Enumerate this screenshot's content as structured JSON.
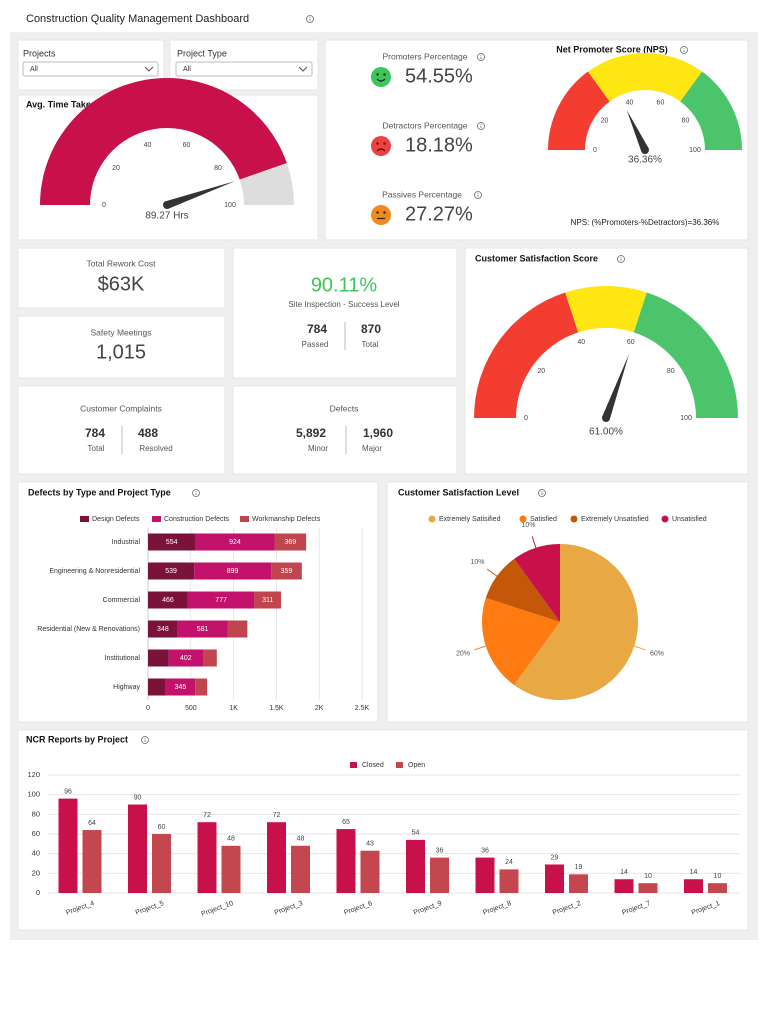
{
  "header": {
    "title": "Construction Quality Management Dashboard"
  },
  "filters": [
    {
      "label": "Projects",
      "value": "All"
    },
    {
      "label": "Project Type",
      "value": "All"
    }
  ],
  "kpis": {
    "rework_cost": {
      "label": "Total Rework Cost",
      "value": "$63K"
    },
    "safety_meetings": {
      "label": "Safety Meetings",
      "value": "1,015"
    },
    "site_inspection": {
      "value": "90.11%",
      "label": "Site Inspection - Success Level",
      "passed": {
        "value": "784",
        "label": "Passed"
      },
      "total": {
        "value": "870",
        "label": "Total"
      }
    },
    "complaints": {
      "label": "Customer Complaints",
      "total": {
        "value": "784",
        "label": "Total"
      },
      "resolved": {
        "value": "488",
        "label": "Resolved"
      }
    },
    "defects": {
      "label": "Defects",
      "minor": {
        "value": "5,892",
        "label": "Minor"
      },
      "major": {
        "value": "1,960",
        "label": "Major"
      }
    },
    "nps_breakdown": [
      {
        "label": "Promoters Percentage",
        "value": "54.55%"
      },
      {
        "label": "Detractors Percentage",
        "value": "18.18%"
      },
      {
        "label": "Passives Percentage",
        "value": "27.27%"
      }
    ]
  },
  "chart_data": [
    {
      "type": "gauge",
      "title": "Avg. Time Taken to Fix Defects",
      "value": 89.27,
      "value_label": "89.27 Hrs",
      "ylim": [
        0,
        100
      ],
      "yticks": [
        0,
        20,
        40,
        60,
        80,
        100
      ],
      "color": "#c8104a",
      "track_color": "#dddddd"
    },
    {
      "type": "gauge",
      "title": "Net Promoter Score (NPS)",
      "value": 36.36,
      "value_label": "36.36%",
      "ylim": [
        0,
        100
      ],
      "yticks": [
        0,
        20,
        40,
        60,
        80,
        100
      ],
      "bands": [
        {
          "from": 0,
          "to": 30,
          "color": "#f23d30"
        },
        {
          "from": 30,
          "to": 70,
          "color": "#fde612"
        },
        {
          "from": 70,
          "to": 100,
          "color": "#4cc46c"
        }
      ],
      "annotation": "NPS: (%Promoters-%Detractors)=36.36%"
    },
    {
      "type": "gauge",
      "title": "Customer Satisfaction Score",
      "value": 61.0,
      "value_label": "61.00%",
      "ylim": [
        0,
        100
      ],
      "yticks": [
        0,
        20,
        40,
        60,
        80,
        100
      ],
      "bands": [
        {
          "from": 0,
          "to": 40,
          "color": "#f23d30"
        },
        {
          "from": 40,
          "to": 60,
          "color": "#fde612"
        },
        {
          "from": 60,
          "to": 100,
          "color": "#4cc46c"
        }
      ]
    },
    {
      "type": "bar",
      "orientation": "horizontal",
      "stacked": true,
      "title": "Defects by Type and Project Type",
      "categories": [
        "Industrial",
        "Engineering & Nonresidential",
        "Commercial",
        "Residential (New & Renovations)",
        "Institutional",
        "Highway"
      ],
      "series": [
        {
          "name": "Design Defects",
          "color": "#7b1239",
          "values": [
            554,
            539,
            466,
            348,
            241,
            207
          ]
        },
        {
          "name": "Construction Defects",
          "color": "#c2126b",
          "values": [
            924,
            899,
            777,
            581,
            402,
            345
          ]
        },
        {
          "name": "Workmanship Defects",
          "color": "#c0454f",
          "values": [
            369,
            359,
            311,
            232,
            161,
            139
          ]
        }
      ],
      "xlim": [
        0,
        2500
      ],
      "xticks": [
        0,
        500,
        {
          "value": 1000,
          "label": "1K"
        },
        {
          "value": 1500,
          "label": "1.5K"
        },
        {
          "value": 2000,
          "label": "2K"
        },
        {
          "value": 2500,
          "label": "2.5K"
        }
      ],
      "grid": true
    },
    {
      "type": "pie",
      "title": "Customer Satisfaction Level",
      "categories": [
        "Extremely Satisified",
        "Satisfied",
        "Extremely Unsatisfied",
        "Unsatisfied"
      ],
      "values": [
        60,
        20,
        10,
        10
      ],
      "value_labels": [
        "60%",
        "20%",
        "10%",
        "10%"
      ],
      "colors": [
        "#e8a944",
        "#ff7b12",
        "#c45708",
        "#c8104a"
      ]
    },
    {
      "type": "bar",
      "title": "NCR Reports by Project",
      "categories": [
        "Project_4",
        "Project_5",
        "Project_10",
        "Project_3",
        "Project_6",
        "Project_9",
        "Project_8",
        "Project_2",
        "Project_7",
        "Project_1"
      ],
      "series": [
        {
          "name": "Closed",
          "color": "#c8104a",
          "values": [
            96,
            90,
            72,
            72,
            65,
            54,
            36,
            29,
            14,
            14
          ]
        },
        {
          "name": "Open",
          "color": "#c4474f",
          "values": [
            64,
            60,
            48,
            48,
            43,
            36,
            24,
            19,
            10,
            10
          ]
        }
      ],
      "ylim": [
        0,
        120
      ],
      "yticks": [
        0,
        20,
        40,
        60,
        80,
        100,
        120
      ],
      "grid": true
    }
  ]
}
